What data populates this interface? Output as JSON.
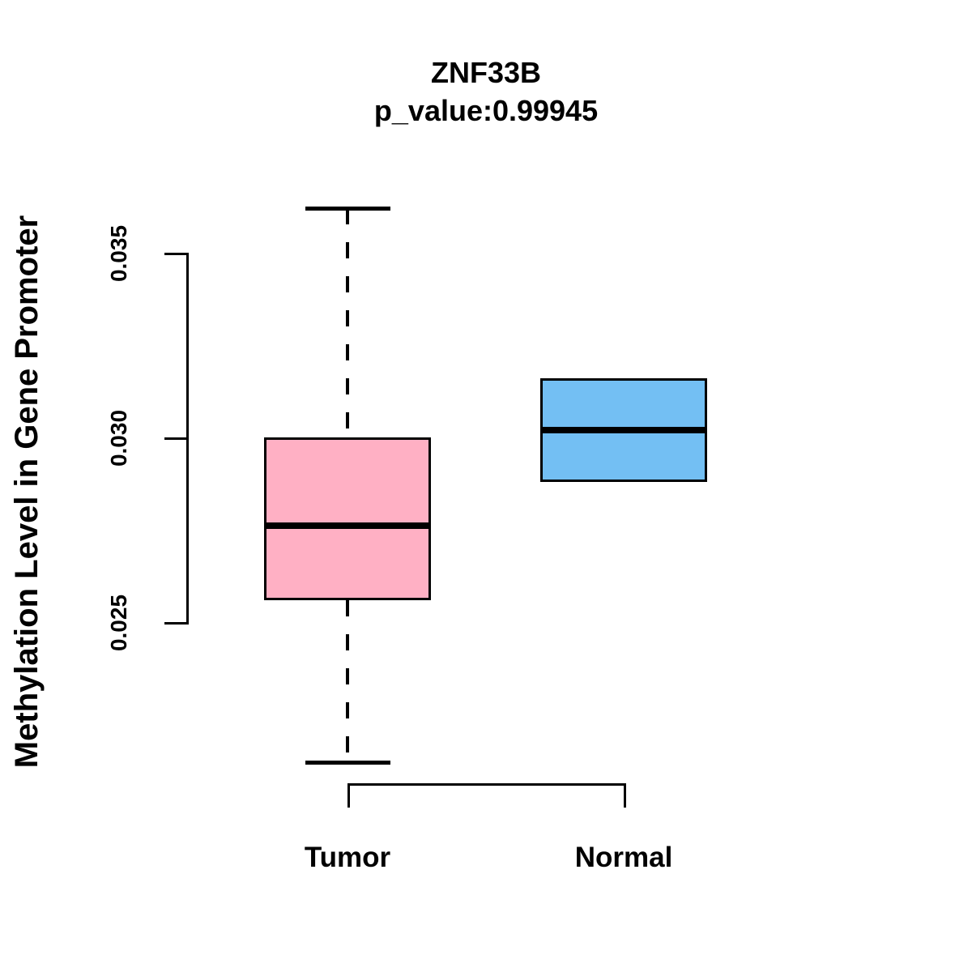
{
  "header": {
    "title": "ZNF33B",
    "subtitle": "p_value:0.99945"
  },
  "y_axis": {
    "label": "Methylation Level in Gene Promoter",
    "tick_labels": [
      "0.025",
      "0.030",
      "0.035"
    ]
  },
  "x_axis": {
    "categories": [
      "Tumor",
      "Normal"
    ]
  },
  "colors": {
    "tumor_fill": "#FFB0C4",
    "normal_fill": "#73BFF3",
    "stroke": "#000000"
  },
  "chart_data": {
    "type": "boxplot",
    "title": "ZNF33B",
    "subtitle": "p_value:0.99945",
    "xlabel": "",
    "ylabel": "Methylation Level in Gene Promoter",
    "categories": [
      "Tumor",
      "Normal"
    ],
    "yticks": [
      0.025,
      0.03,
      0.035
    ],
    "ytick_labels": [
      "0.025",
      "0.030",
      "0.035"
    ],
    "y_axis_range_shown": [
      0.025,
      0.035
    ],
    "grid": false,
    "legend": false,
    "series": [
      {
        "name": "Tumor",
        "fill": "#FFB0C4",
        "whisker_low": 0.0212,
        "q1": 0.0256,
        "median": 0.0276,
        "q3": 0.03,
        "whisker_high": 0.0362
      },
      {
        "name": "Normal",
        "fill": "#73BFF3",
        "whisker_low": 0.0288,
        "q1": 0.0288,
        "median": 0.0302,
        "q3": 0.0316,
        "whisker_high": 0.0316
      }
    ]
  }
}
